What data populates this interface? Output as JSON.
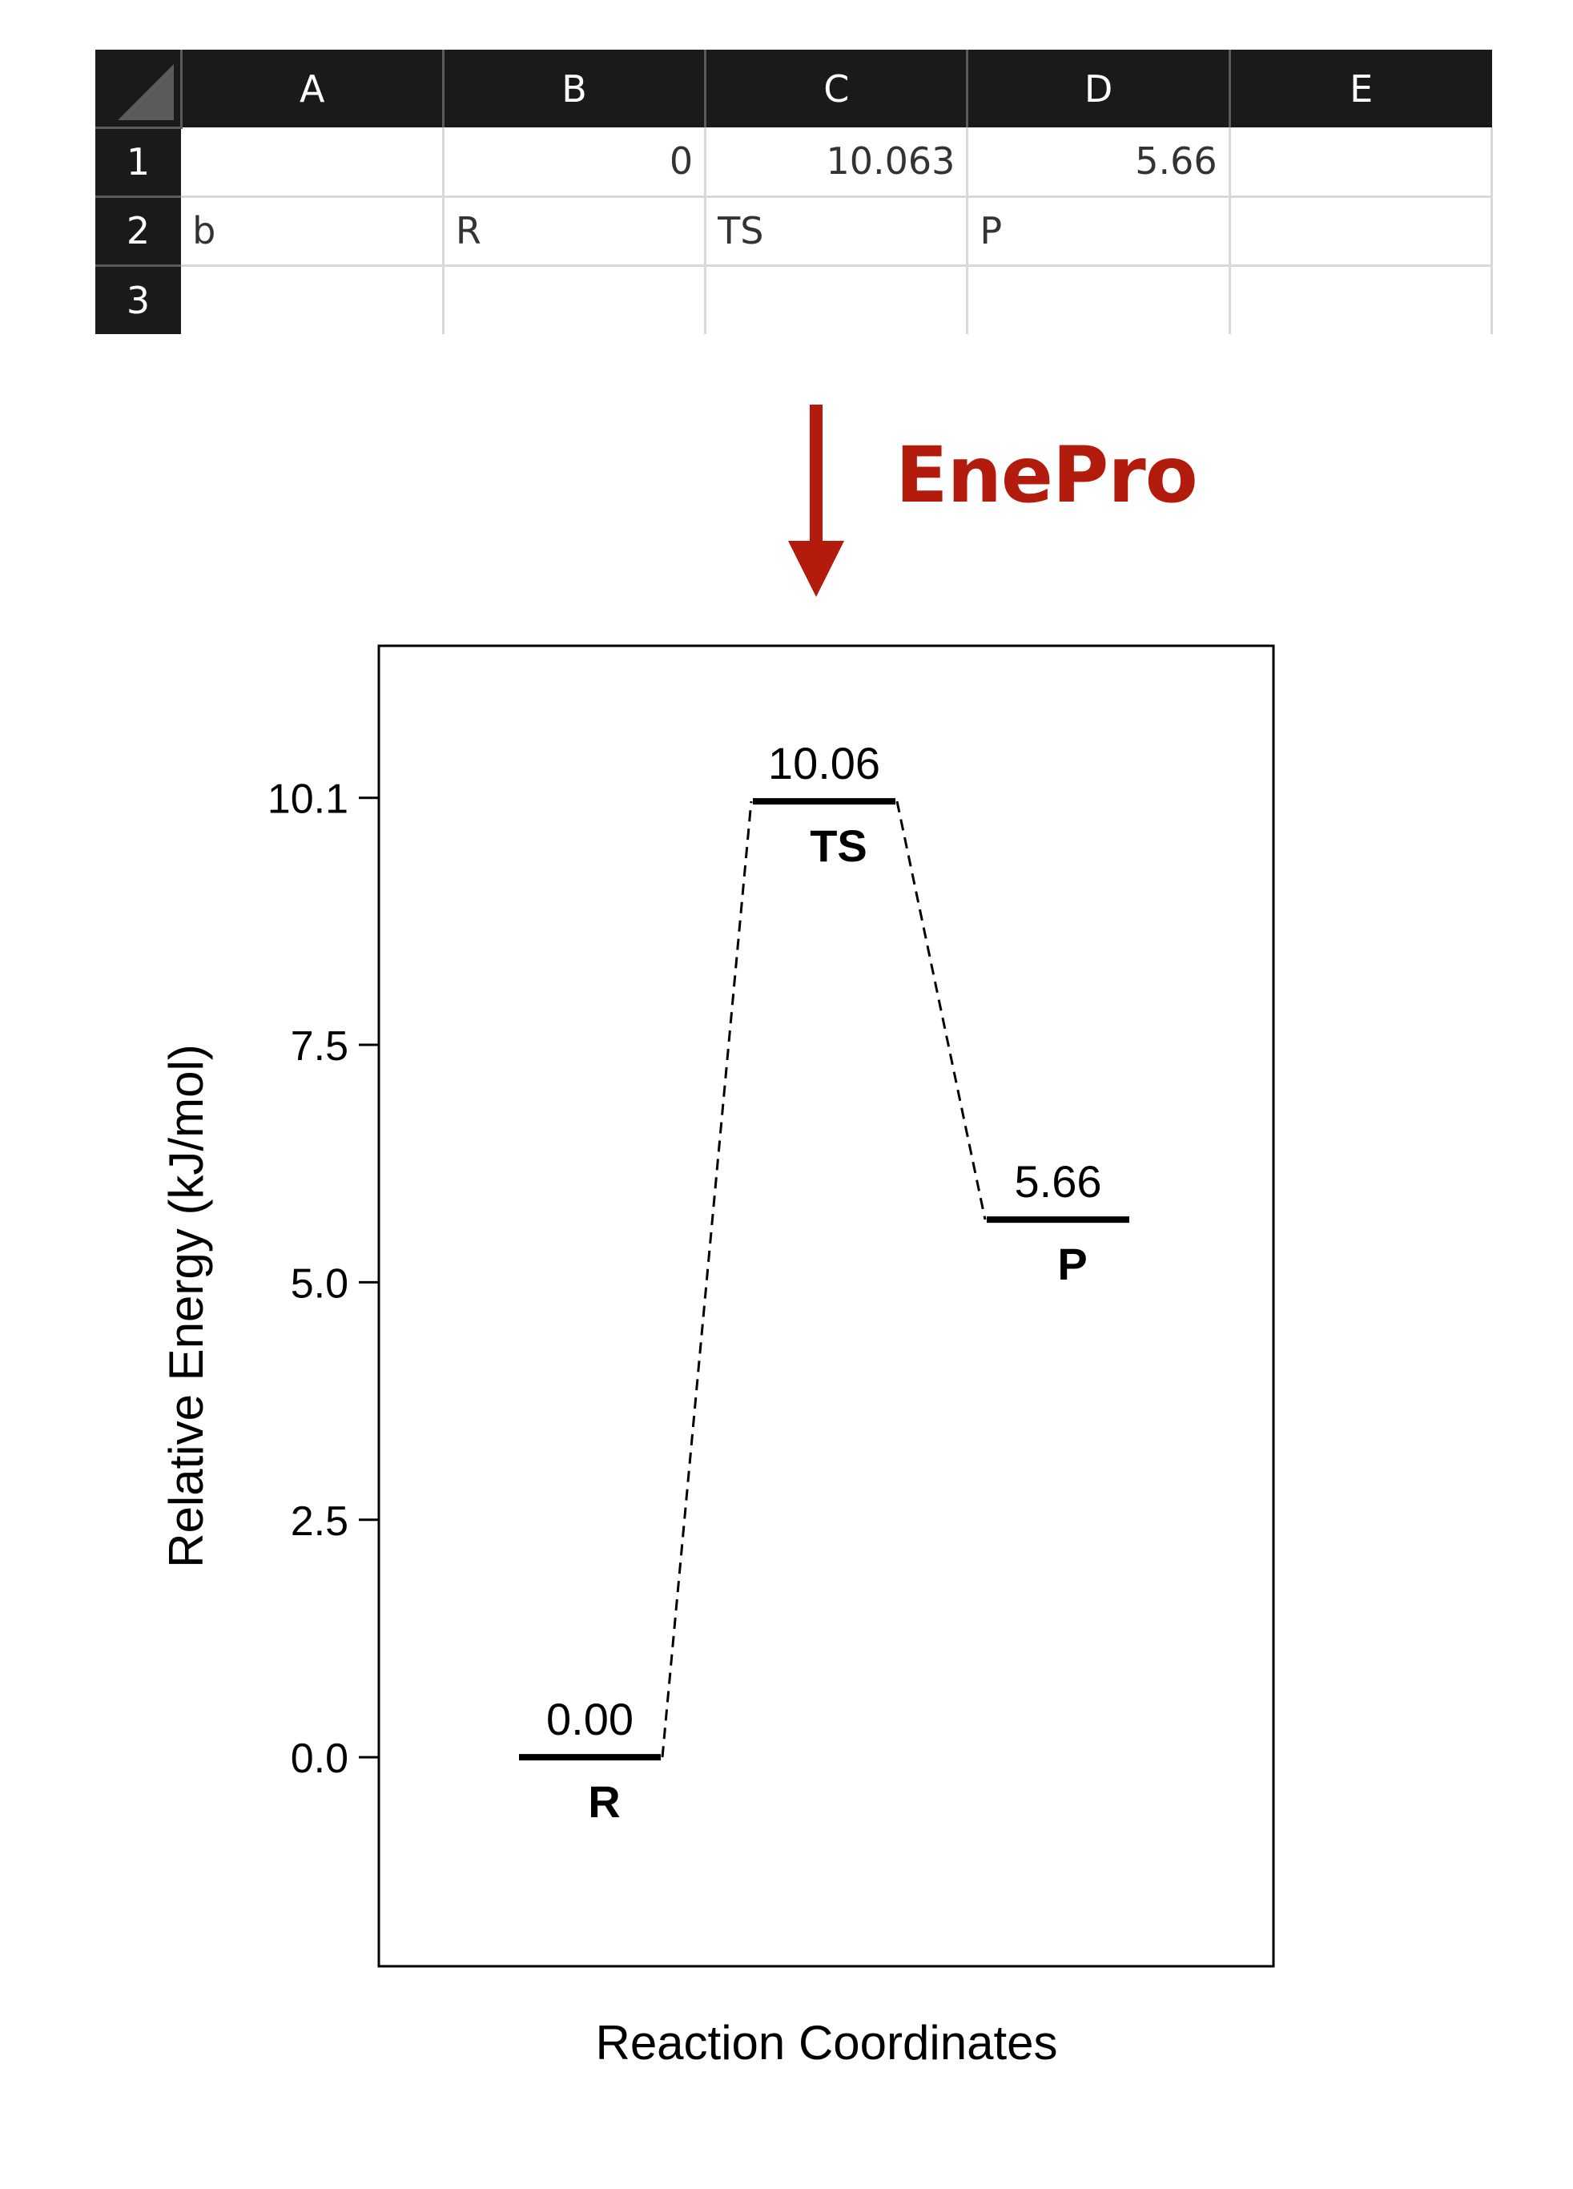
{
  "spreadsheet": {
    "column_headers": [
      "A",
      "B",
      "C",
      "D",
      "E"
    ],
    "rows": [
      {
        "row_label": "1",
        "cells": [
          "",
          "0",
          "10.063",
          "5.66",
          ""
        ]
      },
      {
        "row_label": "2",
        "cells": [
          "b",
          "R",
          "TS",
          "P",
          ""
        ]
      },
      {
        "row_label": "3",
        "cells": [
          "",
          "",
          "",
          "",
          ""
        ]
      }
    ]
  },
  "arrow_label": "EnePro",
  "colors": {
    "accent": "#b31b0d",
    "sheet_header_bg": "#1a1a1a",
    "grid_line": "#d9d9d9"
  },
  "chart_data": {
    "type": "energy-profile",
    "xlabel": "Reaction Coordinates",
    "ylabel": "Relative Energy (kJ/mol)",
    "ylim": [
      -2.2,
      11.7
    ],
    "yticks": [
      0.0,
      2.5,
      5.0,
      7.5,
      10.1
    ],
    "ytick_labels": [
      "0.0",
      "2.5",
      "5.0",
      "7.5",
      "10.1"
    ],
    "grid": false,
    "connector_style": "dashed",
    "states": [
      {
        "name": "R",
        "value": 0.0,
        "value_label": "0.00"
      },
      {
        "name": "TS",
        "value": 10.063,
        "value_label": "10.06"
      },
      {
        "name": "P",
        "value": 5.66,
        "value_label": "5.66"
      }
    ]
  }
}
